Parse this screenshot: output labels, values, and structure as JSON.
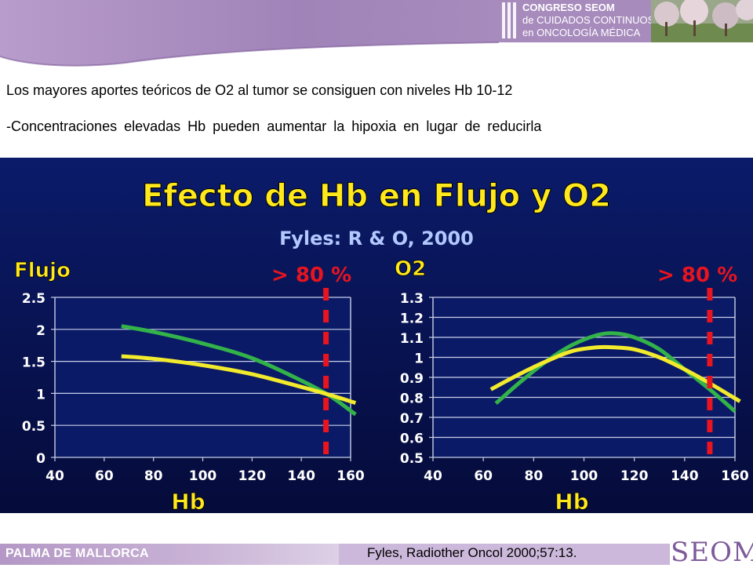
{
  "header": {
    "congress_lines": [
      "CONGRESO SEOM",
      "de CUIDADOS CONTINUOS",
      "en ONCOLOGÍA MÉDICA"
    ]
  },
  "text": {
    "line1": "Los mayores aportes teóricos de O2 al tumor se consiguen con niveles Hb 10-12",
    "line2": "-Concentraciones elevadas Hb pueden aumentar la hipoxia en lugar de reducirla"
  },
  "figure": {
    "title": "Efecto de Hb en Flujo y O2",
    "subtitle": "Fyles: R & O, 2000"
  },
  "chart_data": [
    {
      "type": "line",
      "title": "Flujo",
      "annotation": "> 80 %",
      "xlabel": "Hb",
      "ylabel": "",
      "xlim": [
        40,
        160
      ],
      "ylim": [
        0,
        2.5
      ],
      "xticks": [
        40,
        60,
        80,
        100,
        120,
        140,
        160
      ],
      "yticks": [
        0,
        0.5,
        1,
        1.5,
        2,
        2.5
      ],
      "ytick_labels": [
        "0",
        "0.5",
        "1",
        "1.5",
        "2",
        "2.5"
      ],
      "threshold_x": 150,
      "grid": "horizontal",
      "series": [
        {
          "color": "#33b24a",
          "x": [
            67,
            80,
            100,
            120,
            140,
            152,
            162
          ],
          "y": [
            2.05,
            1.96,
            1.78,
            1.55,
            1.2,
            0.95,
            0.67
          ]
        },
        {
          "color": "#f2ea2c",
          "x": [
            67,
            80,
            100,
            120,
            140,
            152,
            162
          ],
          "y": [
            1.58,
            1.54,
            1.44,
            1.3,
            1.1,
            0.97,
            0.85
          ]
        }
      ]
    },
    {
      "type": "line",
      "title": "O2",
      "annotation": "> 80 %",
      "xlabel": "Hb",
      "ylabel": "",
      "xlim": [
        40,
        160
      ],
      "ylim": [
        0.5,
        1.3
      ],
      "xticks": [
        40,
        60,
        80,
        100,
        120,
        140,
        160
      ],
      "yticks": [
        0.5,
        0.6,
        0.7,
        0.8,
        0.9,
        1.0,
        1.1,
        1.2,
        1.3
      ],
      "ytick_labels": [
        "0.5",
        "0.6",
        "0.7",
        "0.8",
        "0.9",
        "1",
        "1.1",
        "1.2",
        "1.3"
      ],
      "threshold_x": 150,
      "grid": "horizontal",
      "series": [
        {
          "color": "#33b24a",
          "x": [
            65,
            75,
            85,
            95,
            105,
            112,
            120,
            130,
            140,
            150,
            160
          ],
          "y": [
            0.77,
            0.88,
            0.98,
            1.06,
            1.11,
            1.12,
            1.1,
            1.04,
            0.94,
            0.84,
            0.73
          ]
        },
        {
          "color": "#f2ea2c",
          "x": [
            63,
            75,
            85,
            95,
            105,
            112,
            120,
            130,
            140,
            150,
            162
          ],
          "y": [
            0.84,
            0.92,
            0.98,
            1.03,
            1.05,
            1.05,
            1.04,
            1.0,
            0.94,
            0.87,
            0.78
          ]
        }
      ]
    }
  ],
  "footer": {
    "location": "PALMA DE MALLORCA",
    "reference": "Fyles, Radiother Oncol 2000;57:13.",
    "logo": "SEOM"
  },
  "colors": {
    "purple": "#a78bbd",
    "chart_bg_top": "#0b1b6a",
    "chart_bg_bottom": "#050b3a",
    "title_yellow": "#ffe81c",
    "threshold_red": "#e8141f"
  }
}
